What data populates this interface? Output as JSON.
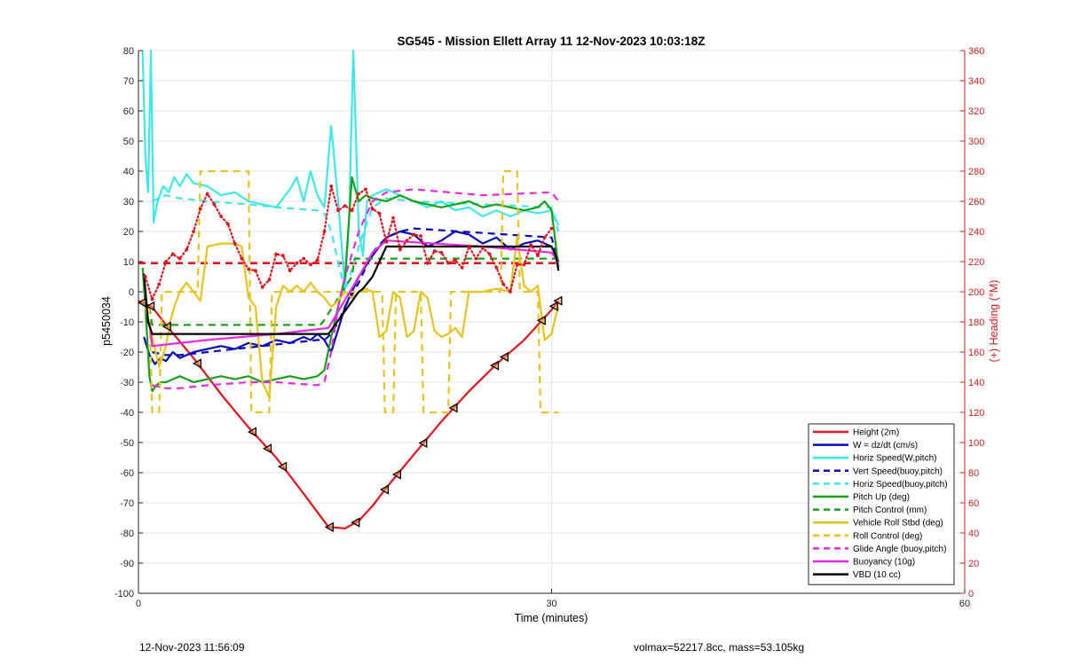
{
  "footer": {
    "left": "12-Nov-2023 11:56:09",
    "right": "volmax=52217.8cc, mass=53.105kg"
  },
  "colors": {
    "red": "#e0141e",
    "blue": "#0a0ab4",
    "cyan": "#3ee8e8",
    "green": "#19a019",
    "yellow": "#e6c31e",
    "magenta": "#e628e6",
    "black": "#000000",
    "axis_right": "#d22020",
    "grid": "#e6e6e6"
  },
  "chart_data": {
    "type": "line",
    "title": "SG545 - Mission Ellett Array 11 12-Nov-2023 10:03:18Z",
    "xlabel": "Time (minutes)",
    "ylabel": "p5450034",
    "y2label": "(+) Heading (°M)",
    "xlim": [
      0,
      60
    ],
    "ylim": [
      -100,
      80
    ],
    "y2lim": [
      0,
      360
    ],
    "xticks": [
      "0",
      "30",
      "60"
    ],
    "yticks": [
      "80",
      "70",
      "60",
      "50",
      "40",
      "30",
      "20",
      "10",
      "0",
      "-10",
      "-20",
      "-30",
      "-40",
      "-50",
      "-60",
      "-70",
      "-80",
      "-90",
      "-100"
    ],
    "y2ticks": [
      "360",
      "340",
      "320",
      "300",
      "280",
      "260",
      "240",
      "220",
      "200",
      "180",
      "160",
      "140",
      "120",
      "100",
      "80",
      "60",
      "40",
      "20",
      "0"
    ],
    "grid": true,
    "legend_position": "bottom-right",
    "series": [
      {
        "name": "Height (2m)",
        "color": "red",
        "dash": false,
        "x": [
          0,
          1,
          2,
          4,
          6,
          8,
          10,
          12,
          13.8,
          15,
          16,
          17,
          18,
          20,
          22,
          24,
          26,
          28,
          30,
          30.5
        ],
        "y": [
          -3,
          -5,
          -11,
          -22,
          -34,
          -45,
          -55,
          -67,
          -78,
          -78.5,
          -76,
          -71,
          -65,
          -54,
          -43,
          -33,
          -24,
          -16,
          -6,
          -3
        ]
      },
      {
        "name": "W = dz/dt (cm/s)",
        "color": "blue",
        "dash": false,
        "x": [
          0.4,
          0.8,
          1.2,
          1.6,
          2,
          2.5,
          3,
          4,
          5,
          6,
          7,
          8,
          9,
          10,
          11,
          12,
          12.5,
          13,
          13.5,
          14,
          15,
          16,
          17,
          18,
          19,
          20,
          21,
          22,
          23,
          24,
          25,
          26,
          27,
          28,
          29,
          30,
          30.5
        ],
        "y": [
          -15,
          -21,
          -24,
          -22,
          -23,
          -20,
          -22,
          -20,
          -19,
          -18,
          -19,
          -17,
          -18,
          -16,
          -17,
          -15,
          -16,
          -14,
          -16,
          -20,
          -5,
          5,
          12,
          18,
          20,
          19,
          15,
          17,
          20,
          19,
          16,
          18,
          14,
          16,
          17,
          15,
          10
        ]
      },
      {
        "name": "Horiz Speed(W,pitch)",
        "color": "cyan",
        "dash": false,
        "x": [
          0.3,
          0.5,
          0.7,
          0.9,
          1.1,
          1.4,
          1.8,
          2.2,
          2.6,
          3,
          3.5,
          4,
          5,
          6,
          7,
          8,
          9,
          10,
          11,
          11.5,
          12,
          12.5,
          13,
          13.5,
          14,
          14.5,
          15,
          15.3,
          15.6,
          16,
          16.3,
          16.6,
          17,
          18,
          19,
          20,
          21,
          22,
          23,
          24,
          25,
          26,
          27,
          28,
          29,
          30,
          30.5
        ],
        "y": [
          80,
          45,
          33,
          80,
          23,
          30,
          35,
          33,
          38,
          35,
          39,
          36,
          35,
          32,
          33,
          30,
          29,
          28,
          34,
          38,
          30,
          40,
          32,
          28,
          55,
          30,
          1,
          25,
          80,
          20,
          12,
          30,
          32,
          34,
          32,
          30,
          28,
          30,
          27,
          28,
          25,
          27,
          25,
          27,
          26,
          27,
          22
        ]
      },
      {
        "name": "Vert Speed(buoy,pitch)",
        "color": "blue",
        "dash": true,
        "x": [
          1,
          2,
          3,
          13,
          13.5,
          14,
          14.5,
          15,
          16,
          17,
          18,
          19,
          20,
          30,
          30.5
        ],
        "y": [
          -20,
          -21,
          -21,
          -16,
          -16,
          -14,
          -10,
          -5,
          3,
          13,
          18,
          20,
          21,
          18,
          10
        ]
      },
      {
        "name": "Horiz Speed(buoy,pitch)",
        "color": "cyan",
        "dash": true,
        "x": [
          1,
          2,
          3,
          5,
          8,
          10,
          13,
          13.5,
          14,
          14.5,
          15,
          16,
          17,
          18,
          20,
          25,
          30,
          30.5
        ],
        "y": [
          30,
          32,
          31,
          30,
          29,
          28,
          27,
          26,
          20,
          10,
          0,
          15,
          28,
          31,
          30,
          29,
          28,
          20
        ]
      },
      {
        "name": "Pitch Up (deg)",
        "color": "green",
        "dash": false,
        "x": [
          0.3,
          0.5,
          0.8,
          1,
          1.3,
          1.6,
          2,
          2.5,
          3,
          4,
          5,
          6,
          7,
          8,
          9,
          10,
          11,
          12,
          13,
          13.5,
          14,
          14.5,
          15,
          15.5,
          16,
          16.5,
          17,
          18,
          19,
          20,
          21,
          22,
          23,
          24,
          25,
          26,
          27,
          28,
          29,
          29.5,
          30,
          30.5
        ],
        "y": [
          8,
          -5,
          -28,
          -33,
          -31,
          -30,
          -30,
          -29,
          -28,
          -30,
          -29,
          -28,
          -29,
          -28,
          -30,
          -29,
          -28,
          -29,
          -28,
          -26,
          -15,
          -5,
          5,
          38,
          30,
          32,
          31,
          30,
          32,
          30,
          29,
          28,
          29,
          30,
          28,
          29,
          28,
          27,
          28,
          30,
          27,
          8
        ]
      },
      {
        "name": "Pitch Control (mm)",
        "color": "green",
        "dash": true,
        "x": [
          0.8,
          1,
          13.2,
          13.4,
          15.5,
          15.7,
          30.5
        ],
        "y": [
          -5,
          -11,
          -11,
          -10,
          5,
          11,
          11
        ]
      },
      {
        "name": "Vehicle Roll Stbd (deg)",
        "color": "yellow",
        "dash": false,
        "x": [
          0.5,
          1,
          1.5,
          2,
          2.3,
          2.6,
          3,
          3.5,
          4,
          4.5,
          5,
          6,
          7,
          7.5,
          8,
          8.5,
          9,
          9.5,
          10,
          10.5,
          11,
          11.5,
          12,
          12.5,
          13,
          13.5,
          14,
          14.5,
          15,
          15.5,
          16,
          16.5,
          17,
          17.5,
          18,
          18.5,
          19,
          19.5,
          20,
          20.5,
          21,
          21.5,
          22,
          22.5,
          23,
          23.5,
          24,
          25,
          26,
          27,
          27.5,
          28,
          28.5,
          29,
          29.5,
          30,
          30.3,
          30.5
        ],
        "y": [
          -5,
          -15,
          -25,
          -18,
          -10,
          -5,
          0,
          3,
          0,
          -3,
          15,
          16,
          16,
          15,
          -2,
          -5,
          -30,
          -35,
          -5,
          2,
          0,
          2,
          0,
          3,
          0,
          -2,
          -5,
          -3,
          0,
          -2,
          0,
          1,
          0,
          -15,
          -13,
          0,
          -2,
          -15,
          -13,
          0,
          -2,
          -13,
          -15,
          -14,
          -12,
          -15,
          0,
          0,
          1,
          0,
          18,
          2,
          0,
          2,
          -16,
          -14,
          -8,
          -5
        ]
      },
      {
        "name": "Roll Control (deg)",
        "color": "yellow",
        "dash": true,
        "x": [
          0.8,
          1,
          1.5,
          1.7,
          4.3,
          4.5,
          8,
          8.2,
          9.5,
          9.7,
          10.5,
          10.7,
          17.7,
          17.9,
          18.5,
          18.7,
          20.5,
          20.7,
          22.5,
          22.7,
          26.3,
          26.5,
          27.5,
          27.7,
          29,
          29.2,
          30.5
        ],
        "y": [
          -5,
          -40,
          -40,
          0,
          0,
          40,
          40,
          -40,
          -40,
          0,
          0,
          0,
          0,
          -40,
          -40,
          0,
          0,
          -40,
          -40,
          0,
          0,
          40,
          40,
          0,
          0,
          -40,
          -40
        ]
      },
      {
        "name": "Glide Angle (buoy,pitch)",
        "color": "magenta",
        "dash": true,
        "x": [
          1,
          2,
          3,
          5,
          8,
          10,
          13,
          13.5,
          14,
          14.5,
          15,
          16,
          17,
          18,
          20,
          25,
          30,
          30.5
        ],
        "y": [
          -31,
          -32,
          -32,
          -31,
          -30,
          -30,
          -31,
          -30,
          -20,
          -5,
          5,
          20,
          30,
          33,
          34,
          32,
          33,
          30
        ]
      },
      {
        "name": "Buoyancy (10g)",
        "color": "magenta",
        "dash": false,
        "x": [
          0.8,
          1,
          5,
          10,
          13.8,
          16,
          17,
          18,
          25,
          30,
          30.5
        ],
        "y": [
          -10,
          -18,
          -16,
          -14,
          -12,
          5,
          13,
          17,
          15,
          13,
          10
        ]
      },
      {
        "name": "VBD (10 cc)",
        "color": "black",
        "dash": false,
        "x": [
          0.4,
          0.7,
          1,
          1.3,
          13.8,
          16,
          16.3,
          17,
          17.3,
          18,
          30,
          30.3,
          30.5
        ],
        "y": [
          6,
          -10,
          -14,
          -14,
          -14,
          0,
          1,
          5,
          8,
          15,
          15,
          12,
          7
        ]
      }
    ],
    "heading_series": {
      "name": "Heading (°M)",
      "color": "red",
      "axis": "y2",
      "x": [
        0.5,
        1,
        1.5,
        2,
        2.5,
        3,
        3.5,
        4,
        4.5,
        5,
        5.5,
        6,
        6.5,
        7,
        7.5,
        8,
        8.5,
        9,
        9.5,
        10,
        10.5,
        11,
        11.5,
        12,
        12.5,
        13,
        13.5,
        14,
        14.5,
        15,
        15.5,
        16,
        16.5,
        17,
        17.5,
        18,
        18.5,
        19,
        19.5,
        20,
        20.5,
        21,
        21.5,
        22,
        22.5,
        23,
        23.5,
        24,
        24.5,
        25,
        25.5,
        26,
        26.5,
        27,
        27.5,
        28,
        28.5,
        29,
        29.5,
        30
      ],
      "y": [
        210,
        195,
        205,
        220,
        225,
        222,
        228,
        240,
        255,
        265,
        258,
        250,
        245,
        232,
        222,
        215,
        214,
        203,
        208,
        225,
        224,
        214,
        219,
        222,
        218,
        221,
        240,
        270,
        254,
        257,
        254,
        265,
        268,
        255,
        252,
        233,
        249,
        228,
        234,
        238,
        237,
        219,
        227,
        226,
        219,
        221,
        216,
        230,
        222,
        229,
        225,
        216,
        205,
        200,
        218,
        218,
        231,
        224,
        236,
        242
      ]
    },
    "heading_dashed": {
      "name": "Heading target",
      "color": "red",
      "axis": "y2",
      "x": [
        0,
        30.5
      ],
      "y": [
        219,
        219
      ]
    },
    "height_markers_x": [
      0.3,
      0.9,
      2.1,
      4.3,
      8.3,
      9.4,
      10.5,
      13.9,
      15.8,
      17.9,
      18.8,
      20.7,
      22.9,
      25.9,
      26.6,
      29.3,
      30.2,
      30.5
    ]
  }
}
